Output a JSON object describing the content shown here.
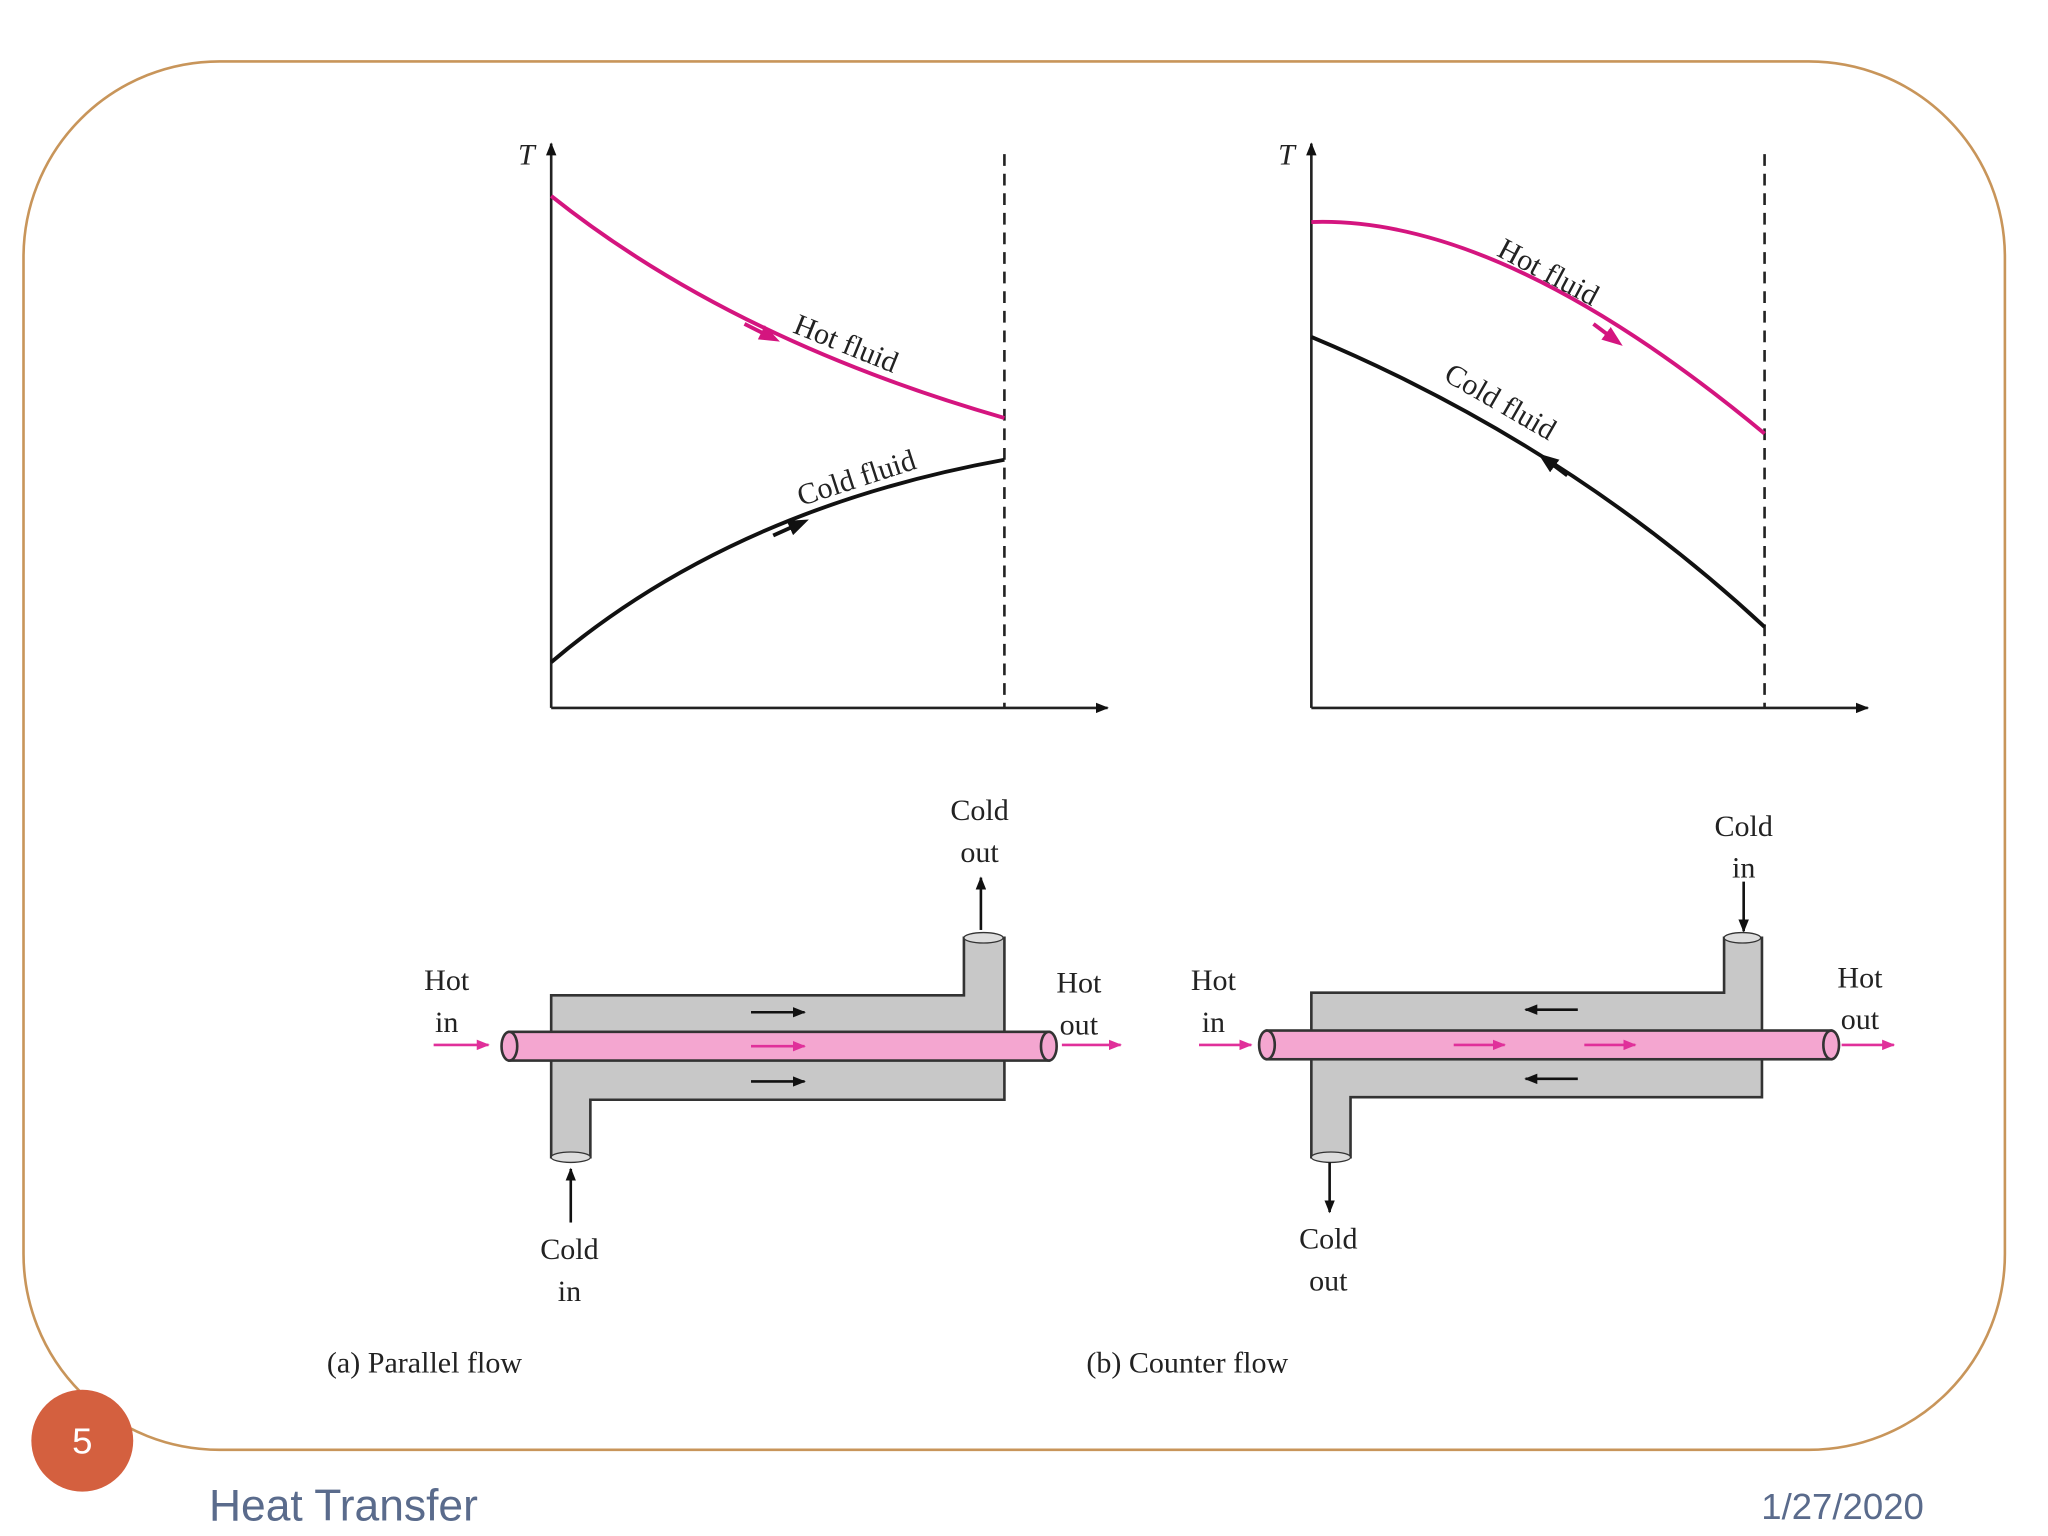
{
  "slide": {
    "number": "5",
    "footer": "Heat Transfer",
    "date": "1/27/2020"
  },
  "panels": [
    {
      "axis_label": "T",
      "hot_curve": "Hot fluid",
      "cold_curve": "Cold fluid",
      "hot_in": [
        "Hot",
        "in"
      ],
      "hot_out": [
        "Hot",
        "out"
      ],
      "cold_in": [
        "Cold",
        "in"
      ],
      "cold_out": [
        "Cold",
        "out"
      ],
      "caption": "(a) Parallel flow"
    },
    {
      "axis_label": "T",
      "hot_curve": "Hot fluid",
      "cold_curve": "Cold fluid",
      "hot_in": [
        "Hot",
        "in"
      ],
      "hot_out": [
        "Hot",
        "out"
      ],
      "cold_in": [
        "Cold",
        "in"
      ],
      "cold_out": [
        "Cold",
        "out"
      ],
      "caption": "(b) Counter flow"
    }
  ]
}
